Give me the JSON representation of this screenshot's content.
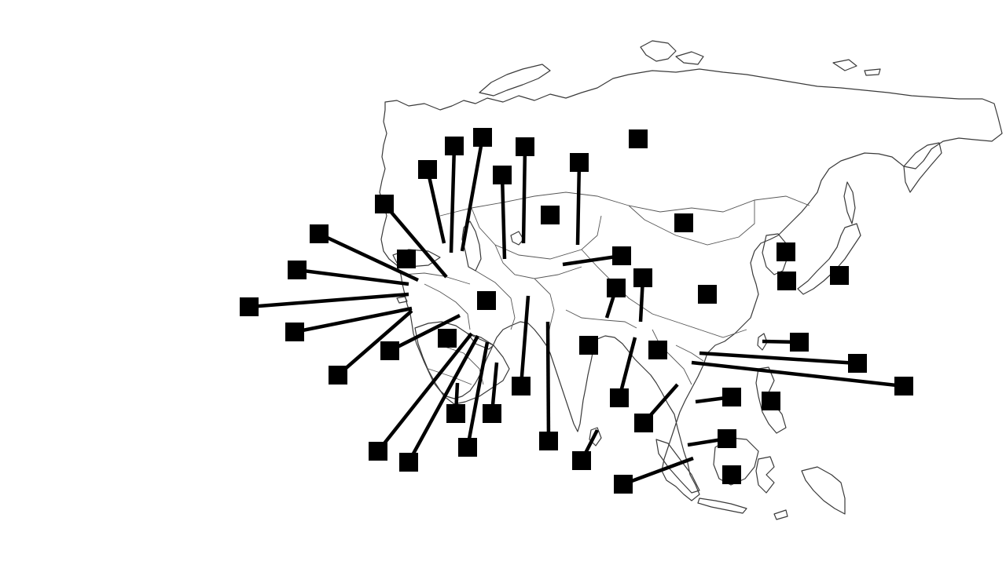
{
  "map": {
    "region": "Asia",
    "style": "blank outline map with black label boxes and leader lines",
    "colors": {
      "background": "#ffffff",
      "outline": "#3a3a3a",
      "label_box": "#000000",
      "leader_line": "#000000"
    },
    "label_box_count": 46,
    "label_text": ""
  }
}
